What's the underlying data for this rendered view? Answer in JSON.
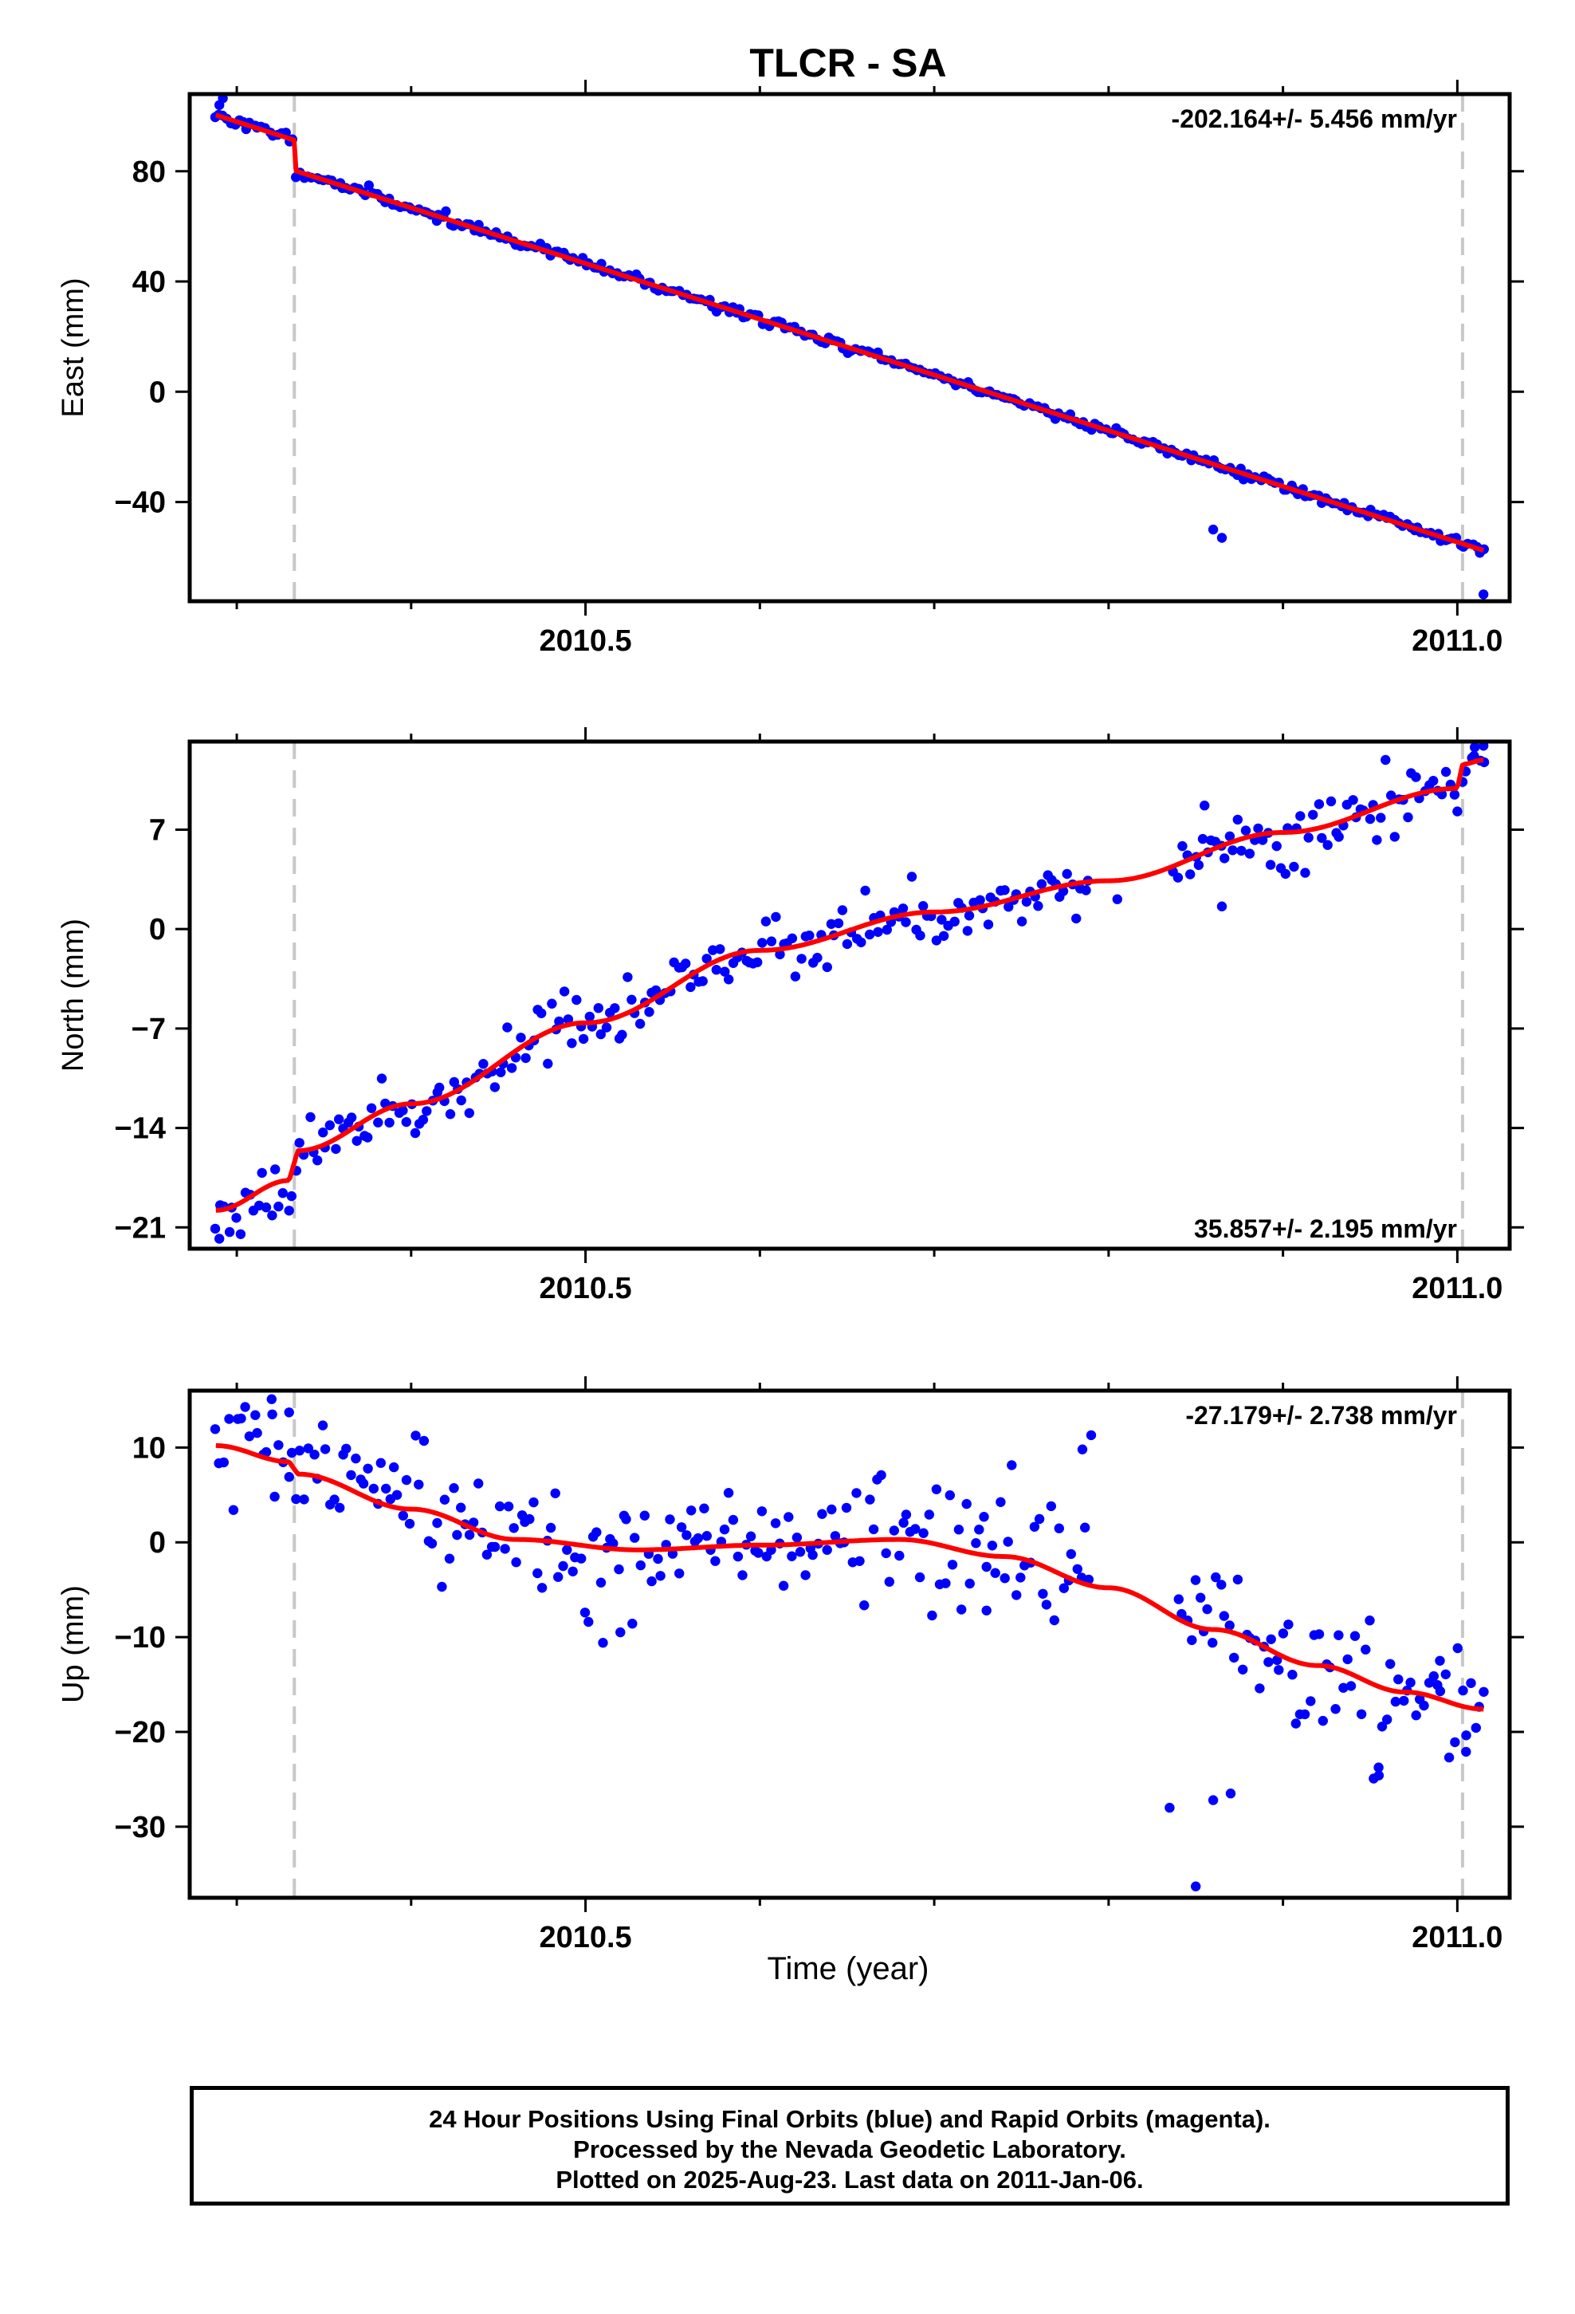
{
  "title": "TLCR - SA",
  "xlabel": "Time (year)",
  "footer": {
    "line1": "24 Hour Positions Using Final Orbits (blue) and Rapid Orbits (magenta).",
    "line2": "Processed by the Nevada Geodetic Laboratory.",
    "line3": "Plotted on 2025-Aug-23. Last data on 2011-Jan-06."
  },
  "colors": {
    "data": "#0000ff",
    "model": "#ff0000",
    "events": "#c8c8c8"
  },
  "chart_data": [
    {
      "type": "scatter",
      "ylabel": "East (mm)",
      "rate_label": "-202.164+/- 5.456 mm/yr",
      "xlim": [
        2010.273,
        2011.03
      ],
      "ylim": [
        -76,
        108
      ],
      "yticks": [
        {
          "v": 80,
          "label": "80"
        },
        {
          "v": 40,
          "label": "40"
        },
        {
          "v": 0,
          "label": "0"
        },
        {
          "v": -40,
          "label": "−40"
        }
      ],
      "xticks": [
        {
          "v": 2010.5,
          "label": "2010.5"
        },
        {
          "v": 2011.0,
          "label": "2011.0"
        }
      ],
      "event_lines": [
        2010.333,
        2011.003
      ],
      "model": {
        "start": 2010.288,
        "end": 2011.015,
        "start_value": 100.4,
        "rate": -202.164,
        "steps": [
          {
            "x": 2010.333,
            "dy": -11
          }
        ],
        "wobble": 0
      },
      "scatter": {
        "n": 330,
        "noise": 0.9,
        "seed": 11,
        "outliers": [
          [
            2010.29,
            104
          ],
          [
            2010.292,
            106.5
          ],
          [
            2010.86,
            -50
          ],
          [
            2010.865,
            -53
          ],
          [
            2011.015,
            -73.5
          ]
        ]
      }
    },
    {
      "type": "scatter",
      "ylabel": "North (mm)",
      "rate_label": "35.857+/- 2.195 mm/yr",
      "xlim": [
        2010.273,
        2011.03
      ],
      "ylim": [
        -22.5,
        13.2
      ],
      "yticks": [
        {
          "v": 7,
          "label": "7"
        },
        {
          "v": 0,
          "label": "0"
        },
        {
          "v": -7,
          "label": "−7"
        },
        {
          "v": -14,
          "label": "−14"
        },
        {
          "v": -21,
          "label": "−21"
        }
      ],
      "xticks": [
        {
          "v": 2010.5,
          "label": "2010.5"
        },
        {
          "v": 2011.0,
          "label": "2011.0"
        }
      ],
      "event_lines": [
        2010.333,
        2011.003
      ],
      "model": {
        "start": 2010.288,
        "end": 2011.015,
        "knots": [
          [
            2010.288,
            -19.8
          ],
          [
            2010.33,
            -17.7
          ],
          [
            2010.335,
            -15.6
          ],
          [
            2010.4,
            -12.3
          ],
          [
            2010.5,
            -6.6
          ],
          [
            2010.6,
            -1.5
          ],
          [
            2010.7,
            1.2
          ],
          [
            2010.8,
            3.4
          ],
          [
            2010.9,
            6.8
          ],
          [
            2011.0,
            9.9
          ],
          [
            2011.003,
            11.6
          ],
          [
            2011.015,
            11.9
          ]
        ]
      },
      "scatter": {
        "n": 300,
        "noise": 1.0,
        "seed": 23,
        "outliers": [
          [
            2010.29,
            -21.8
          ],
          [
            2010.855,
            8.7
          ],
          [
            2010.865,
            1.6
          ],
          [
            2010.805,
            2.1
          ],
          [
            2011.01,
            12.8
          ],
          [
            2011.015,
            12.9
          ]
        ]
      }
    },
    {
      "type": "scatter",
      "ylabel": "Up (mm)",
      "rate_label": "-27.179+/- 2.738 mm/yr",
      "xlim": [
        2010.273,
        2011.03
      ],
      "ylim": [
        -37.5,
        16
      ],
      "yticks": [
        {
          "v": 10,
          "label": "10"
        },
        {
          "v": 0,
          "label": "0"
        },
        {
          "v": -10,
          "label": "−10"
        },
        {
          "v": -20,
          "label": "−20"
        },
        {
          "v": -30,
          "label": "−30"
        }
      ],
      "xticks": [
        {
          "v": 2010.5,
          "label": "2010.5"
        },
        {
          "v": 2011.0,
          "label": "2011.0"
        }
      ],
      "event_lines": [
        2010.333,
        2011.003
      ],
      "model": {
        "start": 2010.288,
        "end": 2011.015,
        "knots": [
          [
            2010.288,
            10.2
          ],
          [
            2010.33,
            8.5
          ],
          [
            2010.335,
            7.2
          ],
          [
            2010.4,
            3.5
          ],
          [
            2010.46,
            0.3
          ],
          [
            2010.53,
            -0.8
          ],
          [
            2010.6,
            -0.3
          ],
          [
            2010.68,
            0.3
          ],
          [
            2010.74,
            -1.5
          ],
          [
            2010.8,
            -4.8
          ],
          [
            2010.86,
            -9.2
          ],
          [
            2010.92,
            -13.0
          ],
          [
            2010.97,
            -15.8
          ],
          [
            2011.015,
            -17.6
          ]
        ]
      },
      "scatter": {
        "n": 300,
        "noise": 3.2,
        "seed": 37,
        "gap": [
          2010.8,
          2010.84
        ],
        "outliers": [
          [
            2010.32,
            15.1
          ],
          [
            2010.33,
            13.7
          ],
          [
            2010.51,
            -10.6
          ],
          [
            2010.52,
            -9.5
          ],
          [
            2010.79,
            11.3
          ],
          [
            2010.785,
            9.8
          ],
          [
            2010.835,
            -28.0
          ],
          [
            2010.85,
            -36.3
          ],
          [
            2010.86,
            -27.2
          ],
          [
            2010.87,
            -26.5
          ],
          [
            2010.955,
            -24.6
          ],
          [
            2011.005,
            -22.1
          ],
          [
            2010.99,
            -12.5
          ],
          [
            2010.73,
            -7.2
          ]
        ]
      }
    }
  ]
}
